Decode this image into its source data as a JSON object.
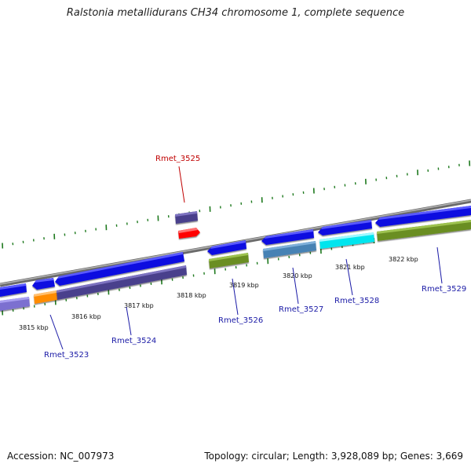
{
  "title": "Ralstonia metallidurans CH34 chromosome 1, complete sequence",
  "footer": {
    "accession": "Accession: NC_007973",
    "summary": "Topology: circular; Length: 3,928,089 bp; Genes: 3,669"
  },
  "colors": {
    "backbone": "#8a8a8a",
    "tick": "#1f7a1f",
    "gene_label": "#1a1aa6",
    "highlight_label": "#c00000",
    "cds_forward": "#1010e0",
    "cds_reverse_dark": "#4a3f8c",
    "cds_reverse_light": "#7b6fd0",
    "orange": "#ff8c00",
    "red": "#ff0000",
    "olive": "#6b8e23",
    "steel": "#4682b4",
    "cyan": "#00e5ee"
  },
  "axis": {
    "ticks_kbp": [
      "3815 kbp",
      "3816 kbp",
      "3817 kbp",
      "3818 kbp",
      "3819 kbp",
      "3820 kbp",
      "3821 kbp",
      "3822 kbp"
    ]
  },
  "gene_labels": [
    "Rmet_3523",
    "Rmet_3524",
    "Rmet_3525",
    "Rmet_3526",
    "Rmet_3527",
    "Rmet_3528",
    "Rmet_3529"
  ]
}
